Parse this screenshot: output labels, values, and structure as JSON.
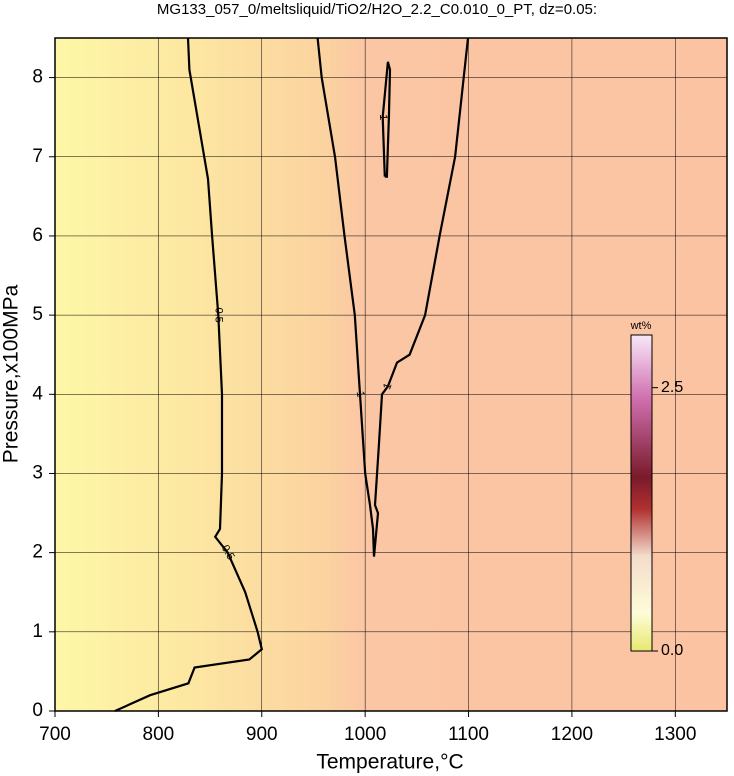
{
  "chart_data": {
    "type": "contour",
    "title": "MG133_057_0/meltsliquid/TiO2/H2O_2.2_C0.010_0_PT, dz=0.05:",
    "xlabel": "Temperature,°C",
    "ylabel": "Pressure,x100MPa",
    "xlim": [
      700,
      1350
    ],
    "ylim": [
      0,
      8.5
    ],
    "xticks": [
      700,
      800,
      900,
      1000,
      1100,
      1200,
      1300
    ],
    "yticks": [
      0,
      1,
      2,
      3,
      4,
      5,
      6,
      7,
      8
    ],
    "grid": true,
    "contours": [
      {
        "level": 0.5,
        "x": [
          828.6,
          830,
          848,
          852,
          858,
          861.5,
          861.5,
          859.6,
          855,
          867,
          884,
          896,
          900,
          888,
          835,
          829,
          792,
          758
        ],
        "y": [
          8.5,
          8.1,
          6.72,
          6,
          5,
          4,
          3,
          2.3,
          2.2,
          2,
          1.5,
          1,
          0.78,
          0.65,
          0.55,
          0.35,
          0.2,
          0
        ]
      },
      {
        "level": 1,
        "x": [
          954,
          958,
          970.8,
          980,
          990,
          995,
          1000,
          1004.7,
          1007.6,
          1008.6,
          1012.4,
          1009.5,
          1013,
          1016.3,
          1022,
          1030.8,
          1043,
          1058,
          1072,
          1087,
          1099.5
        ],
        "y": [
          8.5,
          8,
          7,
          6,
          5,
          4,
          3,
          2.6,
          2.3,
          1.95,
          2.5,
          2.6,
          3.3,
          4,
          4.1,
          4.4,
          4.5,
          5,
          6,
          7,
          8.5
        ]
      },
      {
        "level": 1,
        "x": [
          1019,
          1017,
          1022,
          1024,
          1023,
          1021,
          1019
        ],
        "y": [
          6.75,
          7.5,
          8.2,
          8.1,
          7.5,
          6.75,
          6.75
        ]
      }
    ],
    "colorbar": {
      "label": "wt%",
      "lim": [
        0,
        3
      ],
      "ticks": [
        {
          "value": 0,
          "label": "0.0"
        },
        {
          "value": 2.5,
          "label": "2.5"
        }
      ]
    }
  }
}
